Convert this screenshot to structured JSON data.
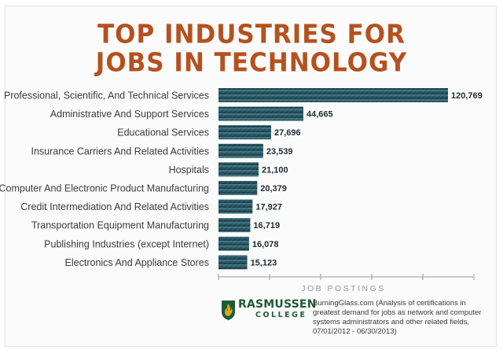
{
  "title_line1": "TOP INDUSTRIES FOR",
  "title_line2": "JOBS IN TECHNOLOGY",
  "chart_data": {
    "type": "bar",
    "orientation": "horizontal",
    "categories": [
      "Professional, Scientific, And Technical Services",
      "Administrative And Support Services",
      "Educational Services",
      "Insurance Carriers And Related Activities",
      "Hospitals",
      "Computer And Electronic Product Manufacturing",
      "Credit Intermediation And Related Activities",
      "Transportation Equipment Manufacturing",
      "Publishing Industries (except Internet)",
      "Electronics And Appliance Stores"
    ],
    "values": [
      120769,
      44665,
      27696,
      23539,
      21100,
      20379,
      17927,
      16719,
      16078,
      15123
    ],
    "value_labels": [
      "120,769",
      "44,665",
      "27,696",
      "23,539",
      "21,100",
      "20,379",
      "17,927",
      "16,719",
      "16,078",
      "15,123"
    ],
    "xlabel": "JOB POSTINGS",
    "xlim": [
      0,
      120769
    ],
    "grid": false,
    "bar_color": "#2a5a66"
  },
  "logo": {
    "name": "RASMUSSEN",
    "sub": "COLLEGE",
    "brand_green": "#1d5b34",
    "brand_gold": "#e0a61c"
  },
  "source": "BurningGlass.com (Analysis of certifications in greatest demand for jobs as network and computer systems administrators and other related fields, 07/01/2012 - 06/30/2013)"
}
